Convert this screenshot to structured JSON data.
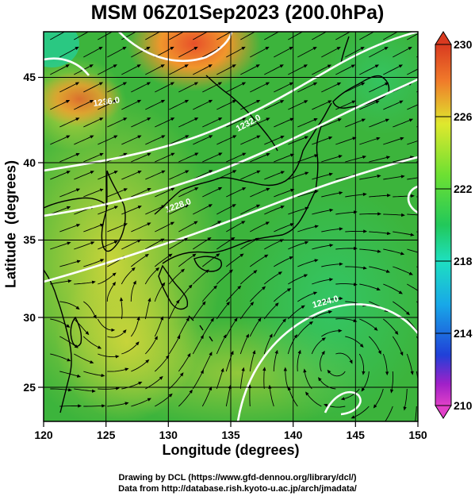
{
  "title": "MSM 06Z01Sep2023 (200.0hPa)",
  "xlabel": "Longitude (degrees)",
  "ylabel": "Latitude  (degrees)",
  "x_ticks": [
    "120",
    "125",
    "130",
    "135",
    "140",
    "145",
    "150"
  ],
  "y_ticks": [
    "25",
    "30",
    "35",
    "40",
    "45"
  ],
  "colorbar_ticks": [
    "230",
    "226",
    "222",
    "218",
    "214",
    "210"
  ],
  "credits": {
    "line1": "Drawing by DCL (https://www.gfd-dennou.org/library/dcl/)",
    "line2": "Data from http://database.rish.kyoto-u.ac.jp/arch/jmadata/"
  },
  "contour_labels": [
    "1236.0",
    "1232.0",
    "1228.0",
    "1224.0"
  ],
  "colors": {
    "field_low": "#3aa83a",
    "field_high": "#e85a2a",
    "contour": "#ffffff",
    "coastline": "#000000"
  },
  "chart_data": {
    "type": "heatmap",
    "title": "MSM 06Z01Sep2023 (200.0hPa)",
    "xlabel": "Longitude (degrees)",
    "ylabel": "Latitude (degrees)",
    "xlim": [
      120,
      150
    ],
    "ylim": [
      22.4,
      47.6
    ],
    "colorbar_range": [
      210,
      230
    ],
    "grid": true,
    "overlays": [
      "streamlines",
      "coastlines",
      "height contours"
    ]
  }
}
